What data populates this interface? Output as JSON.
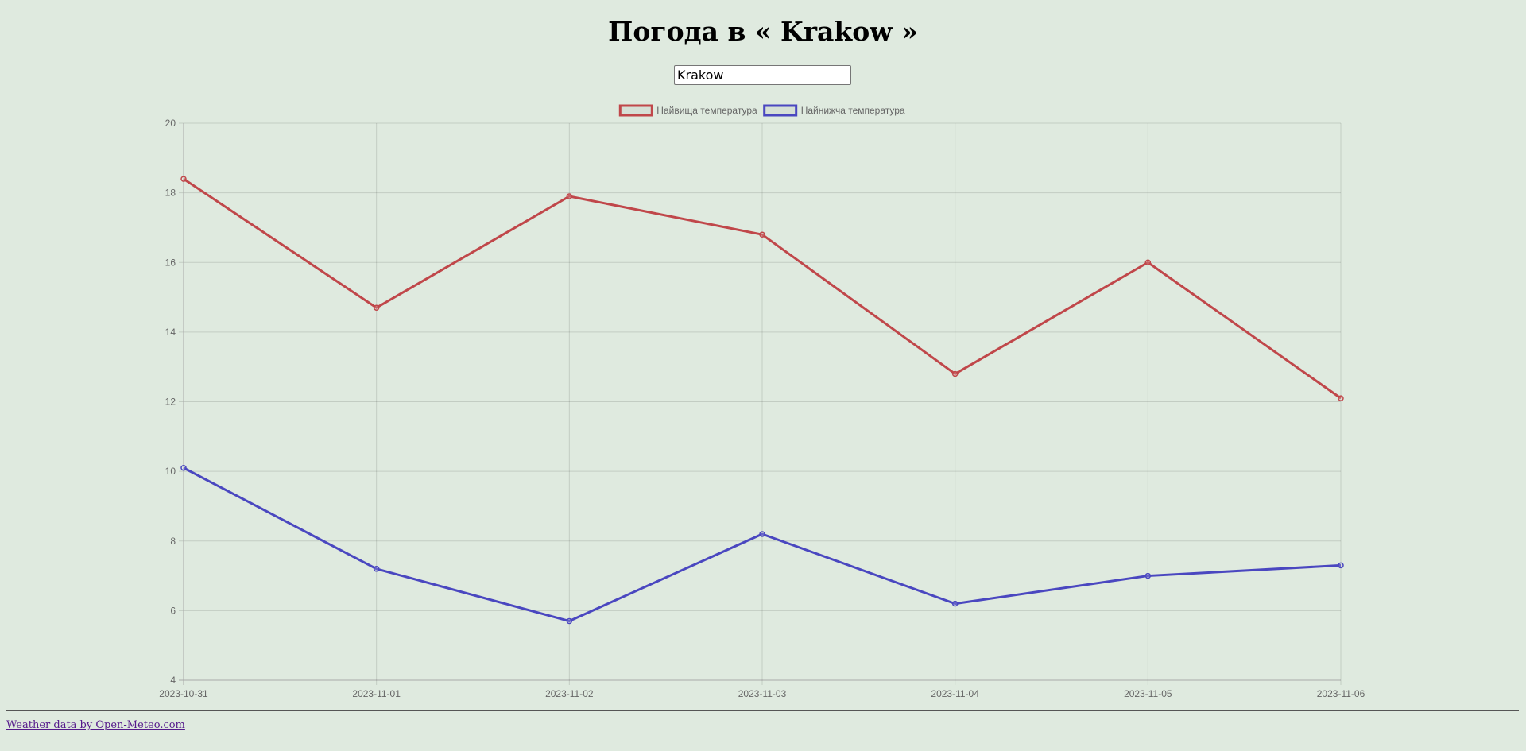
{
  "page": {
    "title": "Погода в « Krakow »",
    "city_input_value": "Krakow",
    "footer_link": "Weather data by Open-Meteo.com"
  },
  "chart_data": {
    "type": "line",
    "x": [
      "2023-10-31",
      "2023-11-01",
      "2023-11-02",
      "2023-11-03",
      "2023-11-04",
      "2023-11-05",
      "2023-11-06"
    ],
    "ylim": [
      4,
      20
    ],
    "y_ticks": [
      "4",
      "6",
      "8",
      "10",
      "12",
      "14",
      "16",
      "18",
      "20"
    ],
    "grid": true,
    "legend_position": "top",
    "series": [
      {
        "name": "Найвища температура",
        "color": "#c0474a",
        "values": [
          18.4,
          14.7,
          17.9,
          16.8,
          12.8,
          16.0,
          12.1
        ]
      },
      {
        "name": "Найнижча температура",
        "color": "#4a47c0",
        "values": [
          10.1,
          7.2,
          5.7,
          8.2,
          6.2,
          7.0,
          7.3
        ]
      }
    ]
  }
}
